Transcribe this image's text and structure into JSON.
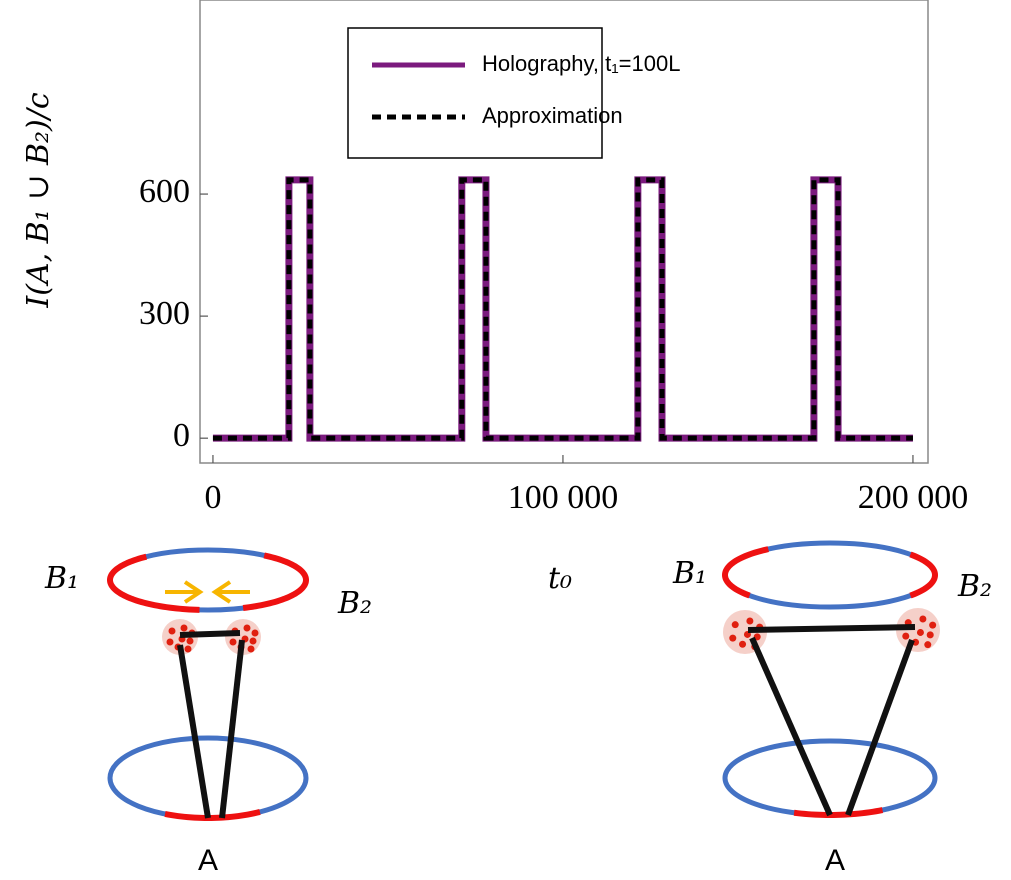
{
  "chart_data": {
    "type": "line",
    "x_label": "t₀",
    "y_label": "I(A, B₁ ∪ B₂)/c",
    "xlim": [
      -3700,
      204300
    ],
    "ylim": [
      -61,
      1077
    ],
    "xticks": [
      0,
      {
        "value": 100000,
        "label": "100 000"
      },
      {
        "value": 200000,
        "label": "200 000"
      }
    ],
    "yticks": [
      0,
      300,
      600
    ],
    "legend": "top-center",
    "x": [
      0,
      21700,
      21700,
      27700,
      27700,
      71100,
      71100,
      78000,
      78000,
      121400,
      121400,
      128300,
      128300,
      171700,
      171700,
      178600,
      178600,
      200000
    ],
    "series": [
      {
        "name": "Holography, t₁=100L",
        "color": "#7b1a7e",
        "style": "solid",
        "values": [
          0,
          0,
          635,
          635,
          0,
          0,
          635,
          635,
          0,
          0,
          635,
          635,
          0,
          0,
          635,
          635,
          0,
          0
        ]
      },
      {
        "name": "Approximation",
        "color": "#000000",
        "style": "dashed",
        "values": [
          0,
          0,
          635,
          635,
          0,
          0,
          635,
          635,
          0,
          0,
          635,
          635,
          0,
          0,
          635,
          635,
          0,
          0
        ]
      }
    ]
  },
  "diagrams": [
    {
      "b1": "B₁",
      "b2": "B₂",
      "a": "A"
    },
    {
      "b1": "B₁",
      "b2": "B₂",
      "a": "A"
    }
  ]
}
